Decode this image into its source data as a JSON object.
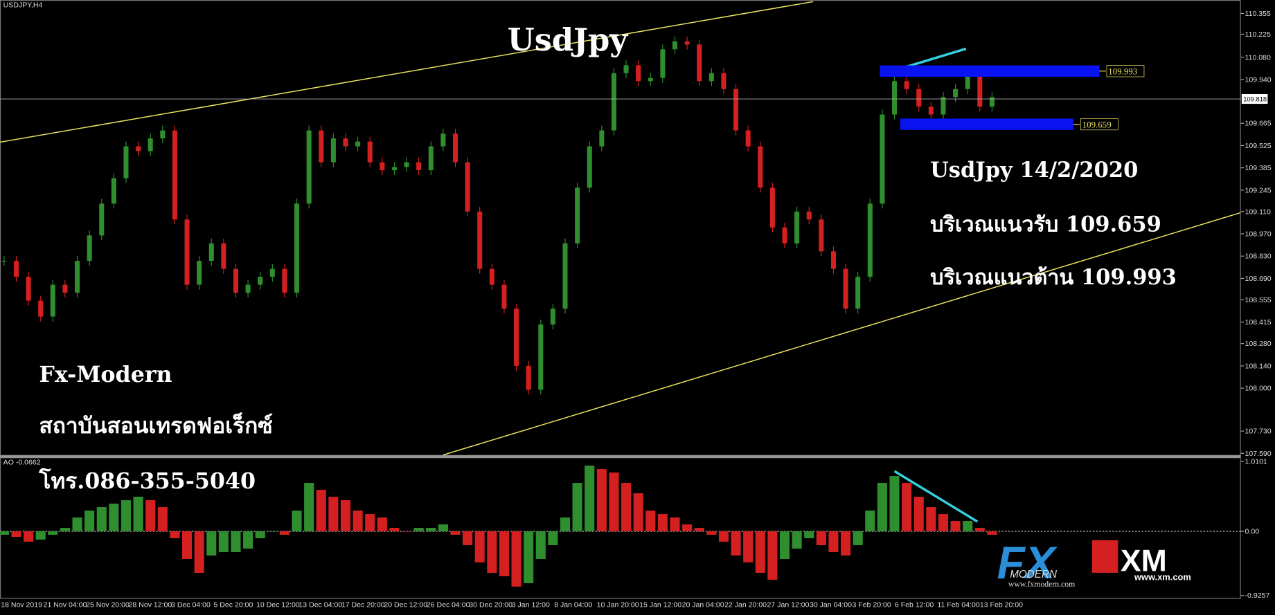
{
  "header": {
    "symbol": "USDJPY,H4",
    "indicator": "AO -0.0662"
  },
  "chart_data": [
    {
      "type": "candlestick",
      "title": "UsdJpy",
      "x_labels": [
        "18 Nov 2019",
        "21 Nov 04:00",
        "25 Nov 20:00",
        "28 Nov 12:00",
        "3 Dec 04:00",
        "5 Dec 20:00",
        "10 Dec 12:00",
        "13 Dec 04:00",
        "17 Dec 20:00",
        "20 Dec 12:00",
        "26 Dec 04:00",
        "30 Dec 20:00",
        "3 Jan 12:00",
        "8 Jan 04:00",
        "10 Jan 20:00",
        "15 Jan 12:00",
        "20 Jan 04:00",
        "22 Jan 20:00",
        "27 Jan 12:00",
        "30 Jan 04:00",
        "3 Feb 20:00",
        "6 Feb 12:00",
        "11 Feb 04:00",
        "13 Feb 20:00"
      ],
      "values": [
        108.8,
        108.7,
        108.55,
        108.45,
        108.65,
        108.6,
        108.8,
        108.96,
        109.16,
        109.32,
        109.52,
        109.49,
        109.57,
        109.62,
        109.06,
        108.65,
        108.8,
        108.91,
        108.75,
        108.6,
        108.65,
        108.7,
        108.75,
        108.6,
        109.16,
        109.62,
        109.42,
        109.57,
        109.52,
        109.55,
        109.42,
        109.37,
        109.39,
        109.42,
        109.37,
        109.52,
        109.6,
        109.42,
        109.11,
        108.75,
        108.65,
        108.5,
        108.14,
        107.99,
        108.4,
        108.5,
        108.91,
        109.26,
        109.52,
        109.62,
        109.98,
        110.03,
        109.93,
        109.95,
        110.13,
        110.18,
        110.16,
        109.93,
        109.98,
        109.88,
        109.62,
        109.52,
        109.26,
        109.01,
        108.91,
        109.11,
        109.06,
        108.86,
        108.75,
        108.5,
        108.7,
        109.16,
        109.72,
        109.93,
        109.88,
        109.77,
        109.72,
        109.83,
        109.88,
        109.98,
        109.77,
        109.83
      ],
      "up_color": "#2f8f2f",
      "down_color": "#d42020",
      "ylim": [
        107.58,
        110.44
      ],
      "yticks": [
        110.355,
        110.225,
        {
          "value": 110.08,
          "label": "110.080"
        },
        {
          "value": 109.94,
          "label": "109.940"
        },
        109.665,
        109.525,
        109.385,
        109.245,
        {
          "value": 109.11,
          "label": "109.110"
        },
        {
          "value": 108.97,
          "label": "108.970"
        },
        {
          "value": 108.83,
          "label": "108.830"
        },
        {
          "value": 108.69,
          "label": "108.690"
        },
        108.555,
        108.415,
        {
          "value": 108.28,
          "label": "108.280"
        },
        {
          "value": 108.14,
          "label": "108.140"
        },
        {
          "value": 108,
          "label": "108.000"
        },
        {
          "value": 107.73,
          "label": "107.730"
        },
        {
          "value": 107.59,
          "label": "107.590"
        }
      ],
      "current_price": 109.818,
      "resistance": 109.993,
      "support": 109.659,
      "zone_color": "#0a14f0",
      "annotations": {
        "date_note": "UsdJpy 14/2/2020",
        "support_text": "บริเวณแนวรับ 109.659",
        "resistance_text": "บริเวณแนวต้าน 109.993"
      }
    },
    {
      "type": "bar",
      "title": "AO",
      "values": [
        -0.05,
        -0.08,
        -0.15,
        -0.12,
        -0.05,
        0.05,
        0.2,
        0.3,
        0.35,
        0.4,
        0.45,
        0.5,
        0.45,
        0.35,
        -0.1,
        -0.4,
        -0.6,
        -0.35,
        -0.3,
        -0.3,
        -0.25,
        -0.1,
        0.0,
        -0.05,
        0.3,
        0.7,
        0.6,
        0.5,
        0.45,
        0.3,
        0.25,
        0.2,
        0.05,
        0.0,
        0.05,
        0.05,
        0.1,
        -0.05,
        -0.2,
        -0.45,
        -0.6,
        -0.65,
        -0.8,
        -0.75,
        -0.4,
        -0.2,
        0.2,
        0.7,
        0.95,
        0.9,
        0.85,
        0.7,
        0.55,
        0.3,
        0.25,
        0.2,
        0.1,
        0.05,
        -0.05,
        -0.15,
        -0.35,
        -0.45,
        -0.6,
        -0.7,
        -0.4,
        -0.25,
        -0.1,
        -0.2,
        -0.3,
        -0.35,
        -0.2,
        0.3,
        0.7,
        0.8,
        0.7,
        0.5,
        0.35,
        0.25,
        0.15,
        0.15,
        0.05,
        -0.05
      ],
      "up_color": "#2f8f2f",
      "down_color": "#d42020",
      "ylim": [
        -0.975,
        1.069
      ],
      "yticks": [
        1.0101,
        {
          "value": 0,
          "label": "0.00"
        },
        -0.9257
      ]
    }
  ],
  "brand": {
    "name": "Fx-Modern",
    "tagline": "สถาบันสอนเทรดฟอเร็กซ์",
    "phone": "โทร.086-355-5040",
    "logo1_a": "FX",
    "logo1_b": "MODERN",
    "logo1_url": "www.fxmodern.com",
    "logo2": "XM",
    "logo2_url": "www.xm.com"
  }
}
